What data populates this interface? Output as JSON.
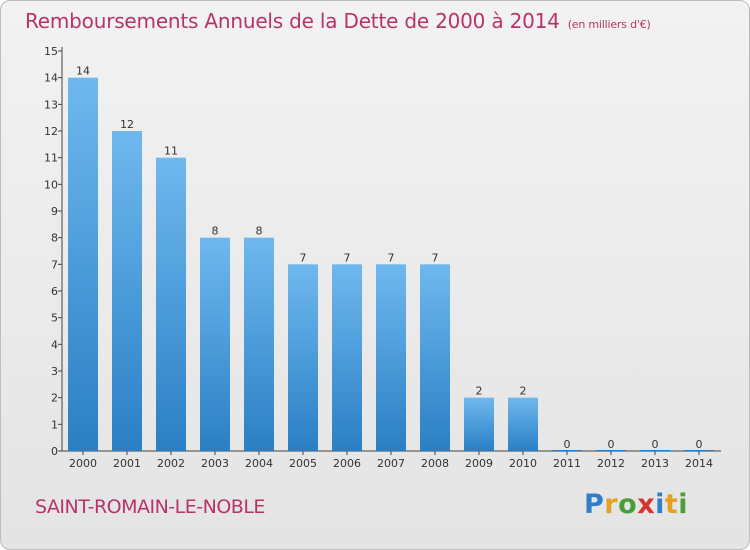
{
  "title": "Remboursements Annuels de la Dette de 2000 à 2014",
  "subtitle": "(en milliers d'€)",
  "commune": "SAINT-ROMAIN-LE-NOBLE",
  "logo": {
    "letters": [
      "P",
      "r",
      "o",
      "x",
      "i",
      "t",
      "i"
    ],
    "colors": [
      "#2f7fc8",
      "#e8a020",
      "#4a9e3a",
      "#d8342c",
      "#2f7fc8",
      "#e8a020",
      "#4a9e3a"
    ]
  },
  "colors": {
    "bar_top": "#6fb8ef",
    "bar_bottom": "#2a7fc4",
    "text_accent": "#b8336a"
  },
  "chart_data": {
    "type": "bar",
    "title": "Remboursements Annuels de la Dette de 2000 à 2014",
    "categories": [
      "2000",
      "2001",
      "2002",
      "2003",
      "2004",
      "2005",
      "2006",
      "2007",
      "2008",
      "2009",
      "2010",
      "2011",
      "2012",
      "2013",
      "2014"
    ],
    "values": [
      14,
      12,
      11,
      8,
      8,
      7,
      7,
      7,
      7,
      2,
      2,
      0,
      0,
      0,
      0
    ],
    "ylim": [
      0,
      15
    ],
    "yticks": [
      0,
      1,
      2,
      3,
      4,
      5,
      6,
      7,
      8,
      9,
      10,
      11,
      12,
      13,
      14,
      15
    ],
    "grid": false,
    "legend": "none"
  }
}
